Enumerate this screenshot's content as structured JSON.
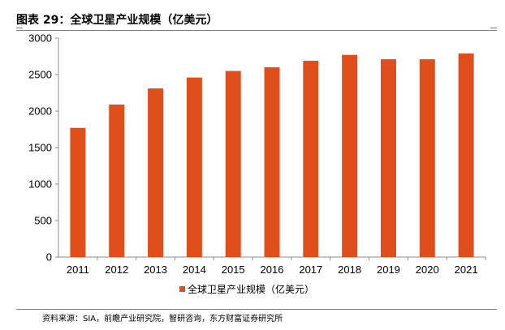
{
  "header": {
    "title": "图表 29：全球卫星产业规模（亿美元）"
  },
  "footer": {
    "source": "资料来源：SIA，前瞻产业研究院，智研咨询，东方财富证券研究所"
  },
  "colors": {
    "bar": "#e04e1c",
    "axis": "#8c8c8c"
  },
  "chart_data": {
    "type": "bar",
    "title": "",
    "xlabel": "",
    "ylabel": "",
    "categories": [
      "2011",
      "2012",
      "2013",
      "2014",
      "2015",
      "2016",
      "2017",
      "2018",
      "2019",
      "2020",
      "2021"
    ],
    "series": [
      {
        "name": "全球卫星产业规模（亿美元）",
        "values": [
          1770,
          2090,
          2310,
          2460,
          2550,
          2600,
          2690,
          2770,
          2710,
          2710,
          2790
        ]
      }
    ],
    "ylim": [
      0,
      3000
    ],
    "yticks": [
      0,
      500,
      1000,
      1500,
      2000,
      2500,
      3000
    ],
    "grid": false,
    "legend": "bottom"
  }
}
